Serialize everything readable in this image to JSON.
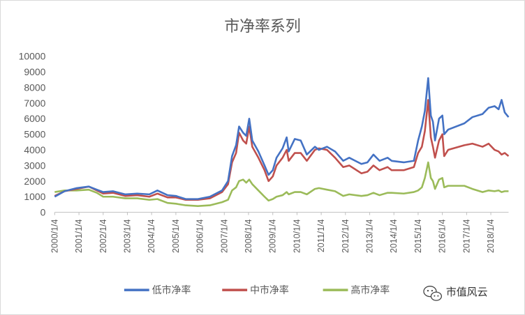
{
  "chart_data": {
    "type": "line",
    "title": "市净率系列",
    "xlabel": "",
    "ylabel": "",
    "ylim": [
      0,
      10000
    ],
    "y_ticks": [
      "0",
      "1000",
      "2000",
      "3000",
      "4000",
      "5000",
      "6000",
      "7000",
      "8000",
      "9000",
      "10000"
    ],
    "x_ticks": [
      "2000/1/4",
      "2001/1/4",
      "2002/1/4",
      "2003/1/4",
      "2004/1/4",
      "2005/1/4",
      "2006/1/4",
      "2007/1/4",
      "2008/1/4",
      "2009/1/4",
      "2010/1/4",
      "2011/1/4",
      "2012/1/4",
      "2013/1/4",
      "2014/1/4",
      "2015/1/4",
      "2016/1/4",
      "2017/1/4",
      "2018/1/4"
    ],
    "x_range": [
      "2000-01-04",
      "2018-09-28"
    ],
    "grid": false,
    "legend_position": "bottom",
    "series": [
      {
        "name": "低市净率",
        "color": "#4472c4",
        "points": [
          [
            "2000-01-04",
            1000
          ],
          [
            "2000-06-01",
            1350
          ],
          [
            "2000-12-01",
            1550
          ],
          [
            "2001-06-01",
            1650
          ],
          [
            "2001-10-01",
            1450
          ],
          [
            "2002-01-04",
            1300
          ],
          [
            "2002-06-01",
            1350
          ],
          [
            "2002-12-01",
            1150
          ],
          [
            "2003-06-01",
            1200
          ],
          [
            "2003-12-01",
            1150
          ],
          [
            "2004-04-01",
            1400
          ],
          [
            "2004-09-01",
            1100
          ],
          [
            "2005-01-04",
            1050
          ],
          [
            "2005-06-01",
            850
          ],
          [
            "2005-12-01",
            850
          ],
          [
            "2006-06-01",
            1000
          ],
          [
            "2006-12-01",
            1400
          ],
          [
            "2007-03-01",
            2000
          ],
          [
            "2007-05-01",
            3600
          ],
          [
            "2007-07-01",
            4300
          ],
          [
            "2007-08-15",
            5500
          ],
          [
            "2007-10-15",
            5100
          ],
          [
            "2007-12-01",
            4900
          ],
          [
            "2008-01-15",
            6000
          ],
          [
            "2008-03-01",
            4600
          ],
          [
            "2008-06-01",
            3900
          ],
          [
            "2008-09-01",
            3000
          ],
          [
            "2008-11-01",
            2400
          ],
          [
            "2009-01-04",
            2700
          ],
          [
            "2009-03-01",
            3500
          ],
          [
            "2009-06-01",
            4100
          ],
          [
            "2009-08-01",
            4800
          ],
          [
            "2009-09-01",
            3900
          ],
          [
            "2009-12-01",
            4700
          ],
          [
            "2010-03-01",
            4600
          ],
          [
            "2010-06-01",
            3700
          ],
          [
            "2010-10-01",
            4200
          ],
          [
            "2010-12-01",
            4000
          ],
          [
            "2011-04-01",
            4200
          ],
          [
            "2011-08-01",
            3900
          ],
          [
            "2011-12-01",
            3300
          ],
          [
            "2012-03-01",
            3500
          ],
          [
            "2012-09-01",
            3100
          ],
          [
            "2012-12-01",
            3200
          ],
          [
            "2013-03-01",
            3700
          ],
          [
            "2013-06-01",
            3300
          ],
          [
            "2013-10-01",
            3500
          ],
          [
            "2013-12-01",
            3300
          ],
          [
            "2014-06-01",
            3200
          ],
          [
            "2014-11-01",
            3300
          ],
          [
            "2015-01-04",
            4600
          ],
          [
            "2015-03-01",
            5500
          ],
          [
            "2015-04-15",
            6500
          ],
          [
            "2015-06-05",
            8600
          ],
          [
            "2015-07-15",
            6200
          ],
          [
            "2015-08-15",
            5800
          ],
          [
            "2015-09-15",
            4600
          ],
          [
            "2015-11-15",
            6000
          ],
          [
            "2016-01-04",
            6200
          ],
          [
            "2016-02-01",
            5000
          ],
          [
            "2016-04-01",
            5300
          ],
          [
            "2016-12-01",
            5700
          ],
          [
            "2017-04-01",
            6100
          ],
          [
            "2017-09-01",
            6300
          ],
          [
            "2017-12-01",
            6700
          ],
          [
            "2018-03-01",
            6800
          ],
          [
            "2018-05-01",
            6600
          ],
          [
            "2018-06-15",
            7200
          ],
          [
            "2018-08-01",
            6400
          ],
          [
            "2018-09-28",
            6100
          ]
        ]
      },
      {
        "name": "中市净率",
        "color": "#c0504d",
        "points": [
          [
            "2000-01-04",
            1050
          ],
          [
            "2000-06-01",
            1350
          ],
          [
            "2000-12-01",
            1500
          ],
          [
            "2001-06-01",
            1650
          ],
          [
            "2001-10-01",
            1400
          ],
          [
            "2002-01-04",
            1200
          ],
          [
            "2002-06-01",
            1250
          ],
          [
            "2002-12-01",
            1050
          ],
          [
            "2003-06-01",
            1100
          ],
          [
            "2003-12-01",
            1000
          ],
          [
            "2004-04-01",
            1200
          ],
          [
            "2004-09-01",
            950
          ],
          [
            "2005-01-04",
            950
          ],
          [
            "2005-06-01",
            800
          ],
          [
            "2005-12-01",
            800
          ],
          [
            "2006-06-01",
            900
          ],
          [
            "2006-12-01",
            1300
          ],
          [
            "2007-03-01",
            1800
          ],
          [
            "2007-05-01",
            3200
          ],
          [
            "2007-07-01",
            3800
          ],
          [
            "2007-08-15",
            5100
          ],
          [
            "2007-10-15",
            4600
          ],
          [
            "2007-12-01",
            4400
          ],
          [
            "2008-01-15",
            5500
          ],
          [
            "2008-03-01",
            4200
          ],
          [
            "2008-06-01",
            3500
          ],
          [
            "2008-09-01",
            2700
          ],
          [
            "2008-11-01",
            2000
          ],
          [
            "2009-01-04",
            2300
          ],
          [
            "2009-03-01",
            3000
          ],
          [
            "2009-06-01",
            3500
          ],
          [
            "2009-08-01",
            4000
          ],
          [
            "2009-09-01",
            3300
          ],
          [
            "2009-12-01",
            3800
          ],
          [
            "2010-03-01",
            3800
          ],
          [
            "2010-06-01",
            3300
          ],
          [
            "2010-10-01",
            4000
          ],
          [
            "2010-12-01",
            4100
          ],
          [
            "2011-04-01",
            4000
          ],
          [
            "2011-08-01",
            3500
          ],
          [
            "2011-12-01",
            2900
          ],
          [
            "2012-03-01",
            3000
          ],
          [
            "2012-09-01",
            2500
          ],
          [
            "2012-12-01",
            2600
          ],
          [
            "2013-03-01",
            3000
          ],
          [
            "2013-06-01",
            2700
          ],
          [
            "2013-10-01",
            2900
          ],
          [
            "2013-12-01",
            2700
          ],
          [
            "2014-06-01",
            2700
          ],
          [
            "2014-11-01",
            2900
          ],
          [
            "2015-01-04",
            3800
          ],
          [
            "2015-03-01",
            4200
          ],
          [
            "2015-04-15",
            5200
          ],
          [
            "2015-06-05",
            7200
          ],
          [
            "2015-07-15",
            4800
          ],
          [
            "2015-08-15",
            4200
          ],
          [
            "2015-09-15",
            3500
          ],
          [
            "2015-11-15",
            4600
          ],
          [
            "2016-01-04",
            5000
          ],
          [
            "2016-02-01",
            3600
          ],
          [
            "2016-04-01",
            4000
          ],
          [
            "2016-12-01",
            4300
          ],
          [
            "2017-04-01",
            4400
          ],
          [
            "2017-09-01",
            4200
          ],
          [
            "2017-12-01",
            4400
          ],
          [
            "2018-03-01",
            4000
          ],
          [
            "2018-05-01",
            3900
          ],
          [
            "2018-06-15",
            3700
          ],
          [
            "2018-08-01",
            3800
          ],
          [
            "2018-09-28",
            3600
          ]
        ]
      },
      {
        "name": "高市净率",
        "color": "#9bbb59",
        "points": [
          [
            "2000-01-04",
            1300
          ],
          [
            "2000-06-01",
            1400
          ],
          [
            "2000-12-01",
            1400
          ],
          [
            "2001-06-01",
            1450
          ],
          [
            "2001-10-01",
            1250
          ],
          [
            "2002-01-04",
            1000
          ],
          [
            "2002-06-01",
            1000
          ],
          [
            "2002-12-01",
            900
          ],
          [
            "2003-06-01",
            900
          ],
          [
            "2003-12-01",
            800
          ],
          [
            "2004-04-01",
            850
          ],
          [
            "2004-09-01",
            600
          ],
          [
            "2005-01-04",
            550
          ],
          [
            "2005-06-01",
            450
          ],
          [
            "2005-12-01",
            400
          ],
          [
            "2006-06-01",
            450
          ],
          [
            "2006-12-01",
            650
          ],
          [
            "2007-03-01",
            800
          ],
          [
            "2007-05-01",
            1400
          ],
          [
            "2007-07-01",
            1600
          ],
          [
            "2007-08-15",
            2000
          ],
          [
            "2007-10-15",
            2100
          ],
          [
            "2007-12-01",
            1900
          ],
          [
            "2008-01-15",
            2100
          ],
          [
            "2008-03-01",
            1800
          ],
          [
            "2008-06-01",
            1400
          ],
          [
            "2008-09-01",
            1000
          ],
          [
            "2008-11-01",
            750
          ],
          [
            "2009-01-04",
            850
          ],
          [
            "2009-03-01",
            1000
          ],
          [
            "2009-06-01",
            1100
          ],
          [
            "2009-08-01",
            1300
          ],
          [
            "2009-09-01",
            1150
          ],
          [
            "2009-12-01",
            1300
          ],
          [
            "2010-03-01",
            1300
          ],
          [
            "2010-06-01",
            1150
          ],
          [
            "2010-10-01",
            1500
          ],
          [
            "2010-12-01",
            1550
          ],
          [
            "2011-04-01",
            1450
          ],
          [
            "2011-08-01",
            1350
          ],
          [
            "2011-12-01",
            1050
          ],
          [
            "2012-03-01",
            1150
          ],
          [
            "2012-09-01",
            1050
          ],
          [
            "2012-12-01",
            1100
          ],
          [
            "2013-03-01",
            1250
          ],
          [
            "2013-06-01",
            1100
          ],
          [
            "2013-10-01",
            1250
          ],
          [
            "2013-12-01",
            1250
          ],
          [
            "2014-06-01",
            1200
          ],
          [
            "2014-11-01",
            1300
          ],
          [
            "2015-01-04",
            1400
          ],
          [
            "2015-03-01",
            1600
          ],
          [
            "2015-04-15",
            2200
          ],
          [
            "2015-06-05",
            3200
          ],
          [
            "2015-07-15",
            2200
          ],
          [
            "2015-08-15",
            2000
          ],
          [
            "2015-09-15",
            1500
          ],
          [
            "2015-11-15",
            2100
          ],
          [
            "2016-01-04",
            2200
          ],
          [
            "2016-02-01",
            1600
          ],
          [
            "2016-04-01",
            1700
          ],
          [
            "2016-12-01",
            1700
          ],
          [
            "2017-04-01",
            1500
          ],
          [
            "2017-09-01",
            1300
          ],
          [
            "2017-12-01",
            1400
          ],
          [
            "2018-03-01",
            1350
          ],
          [
            "2018-05-01",
            1400
          ],
          [
            "2018-06-15",
            1300
          ],
          [
            "2018-08-01",
            1350
          ],
          [
            "2018-09-28",
            1350
          ]
        ]
      }
    ]
  },
  "watermark": {
    "text": "市值风云",
    "icon": "wechat-icon"
  }
}
